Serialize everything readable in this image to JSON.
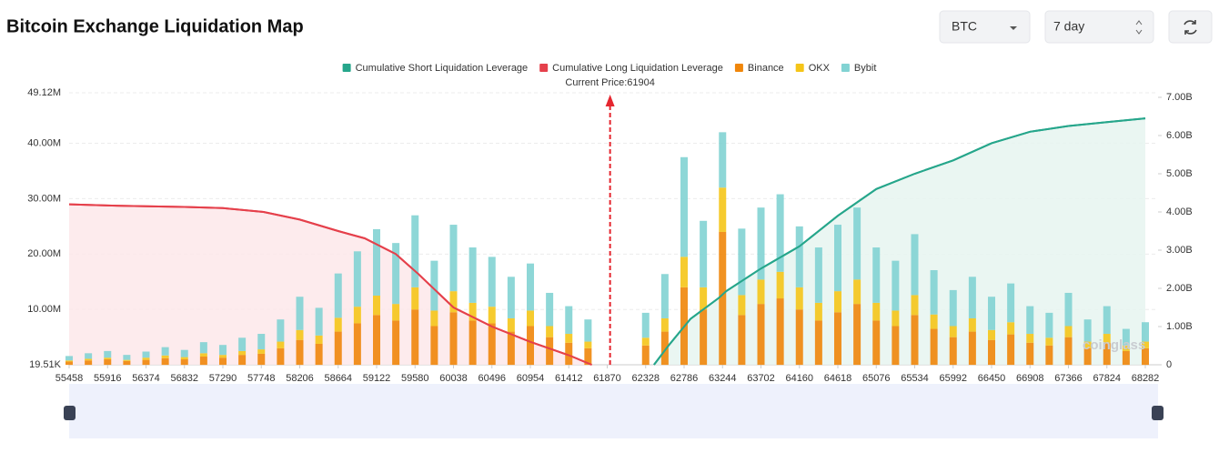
{
  "controls": {
    "coin": "BTC",
    "period": "7 day"
  },
  "chart_data": {
    "type": "bar",
    "title": "Bitcoin Exchange Liquidation Map",
    "current_price": {
      "value": 61904,
      "label": "Current Price:61904"
    },
    "watermark": "coinglass",
    "x": [
      55458,
      55687,
      55916,
      56145,
      56374,
      56603,
      56832,
      57061,
      57290,
      57519,
      57748,
      57977,
      58206,
      58435,
      58664,
      58893,
      59122,
      59351,
      59580,
      59809,
      60038,
      60267,
      60496,
      60725,
      60954,
      61183,
      61412,
      61641,
      61870,
      62099,
      62328,
      62557,
      62786,
      63015,
      63244,
      63473,
      63702,
      63931,
      64160,
      64389,
      64618,
      64847,
      65076,
      65305,
      65534,
      65763,
      65992,
      66221,
      66450,
      66679,
      66908,
      67137,
      67366,
      67595,
      67824,
      68053,
      68282
    ],
    "xlim": [
      55458,
      68282
    ],
    "xticks": [
      55458,
      55916,
      56374,
      56832,
      57290,
      57748,
      58206,
      58664,
      59122,
      59580,
      60038,
      60496,
      60954,
      61412,
      61870,
      62328,
      62786,
      63244,
      63702,
      64160,
      64618,
      65076,
      65534,
      65992,
      66450,
      66908,
      67366,
      67824,
      68282
    ],
    "ylim": [
      19510,
      49120000
    ],
    "yticks": [
      {
        "value": 19510,
        "label": "19.51K"
      },
      {
        "value": 10000000,
        "label": "10.00M"
      },
      {
        "value": 20000000,
        "label": "20.00M"
      },
      {
        "value": 30000000,
        "label": "30.00M"
      },
      {
        "value": 40000000,
        "label": "40.00M"
      },
      {
        "value": 49120000,
        "label": "49.12M"
      }
    ],
    "y2lim": [
      0,
      7000000000
    ],
    "y2ticks": [
      0,
      {
        "value": 1000000000,
        "label": "1.00B"
      },
      {
        "value": 2000000000,
        "label": "2.00B"
      },
      {
        "value": 3000000000,
        "label": "3.00B"
      },
      {
        "value": 4000000000,
        "label": "4.00B"
      },
      {
        "value": 5000000000,
        "label": "5.00B"
      },
      {
        "value": 6000000000,
        "label": "6.00B"
      },
      {
        "value": 7000000000,
        "label": "7.00B"
      }
    ],
    "grid": true,
    "legend": "top",
    "series": [
      {
        "name": "Cumulative Short Liquidation Leverage",
        "type": "line",
        "axis": "y2",
        "color": "#26a68b",
        "fill": "#e6f5f0",
        "x": [
          62427,
          62600,
          62862,
          63200,
          63290,
          63702,
          64160,
          64618,
          65076,
          65534,
          65992,
          66450,
          66908,
          67366,
          67824,
          68282
        ],
        "values": [
          0,
          500000000,
          1200000000,
          1750000000,
          1930000000,
          2520000000,
          3100000000,
          3900000000,
          4600000000,
          5000000000,
          5350000000,
          5800000000,
          6100000000,
          6250000000,
          6350000000,
          6450000000
        ]
      },
      {
        "name": "Cumulative Long Liquidation Leverage",
        "type": "line",
        "axis": "y2",
        "color": "#e5404b",
        "fill": "#fde8ea",
        "x": [
          55458,
          55916,
          56374,
          56832,
          57290,
          57775,
          58206,
          58664,
          58980,
          59350,
          59608,
          60038,
          60496,
          60954,
          61412,
          61686
        ],
        "values": [
          4200000000,
          4170000000,
          4150000000,
          4130000000,
          4100000000,
          4000000000,
          3800000000,
          3500000000,
          3310000000,
          2900000000,
          2400000000,
          1500000000,
          1000000000,
          600000000,
          250000000,
          0
        ]
      },
      {
        "name": "Binance",
        "color": "#f0860a",
        "values": [
          600000,
          800000,
          1000000,
          700000,
          900000,
          1200000,
          1000000,
          1500000,
          1300000,
          1800000,
          2000000,
          3000000,
          4500000,
          3800000,
          6000000,
          7500000,
          9000000,
          8000000,
          10000000,
          7000000,
          9500000,
          8000000,
          7500000,
          6000000,
          7000000,
          5000000,
          4000000,
          3000000,
          0,
          0,
          3500000,
          6000000,
          14000000,
          10000000,
          24000000,
          9000000,
          11000000,
          12000000,
          10000000,
          8000000,
          9500000,
          11000000,
          8000000,
          7000000,
          9000000,
          6500000,
          5000000,
          6000000,
          4500000,
          5500000,
          4000000,
          3500000,
          5000000,
          3000000,
          4000000,
          2500000,
          3000000
        ]
      },
      {
        "name": "OKX",
        "color": "#f5c518",
        "values": [
          200000,
          300000,
          300000,
          200000,
          400000,
          500000,
          400000,
          600000,
          500000,
          700000,
          800000,
          1200000,
          1800000,
          1500000,
          2500000,
          3000000,
          3500000,
          3000000,
          4000000,
          2800000,
          3800000,
          3200000,
          3000000,
          2400000,
          2800000,
          2000000,
          1600000,
          1200000,
          0,
          0,
          1400000,
          2400000,
          5500000,
          4000000,
          8000000,
          3600000,
          4400000,
          4800000,
          4000000,
          3200000,
          3800000,
          4400000,
          3200000,
          2800000,
          3600000,
          2600000,
          2000000,
          2400000,
          1800000,
          2200000,
          1600000,
          1400000,
          2000000,
          1200000,
          1600000,
          1000000,
          1200000
        ]
      },
      {
        "name": "Bybit",
        "color": "#82d3d3",
        "values": [
          800000,
          1000000,
          1200000,
          900000,
          1100000,
          1500000,
          1300000,
          2000000,
          1800000,
          2400000,
          2800000,
          4000000,
          6000000,
          5000000,
          8000000,
          10000000,
          12000000,
          11000000,
          13000000,
          9000000,
          12000000,
          10000000,
          9000000,
          7500000,
          8500000,
          6000000,
          5000000,
          4000000,
          0,
          0,
          4500000,
          8000000,
          18000000,
          12000000,
          10000000,
          12000000,
          13000000,
          14000000,
          11000000,
          10000000,
          12000000,
          13000000,
          10000000,
          9000000,
          11000000,
          8000000,
          6500000,
          7500000,
          6000000,
          7000000,
          5000000,
          4500000,
          6000000,
          4000000,
          5000000,
          3000000,
          3500000
        ]
      }
    ]
  }
}
